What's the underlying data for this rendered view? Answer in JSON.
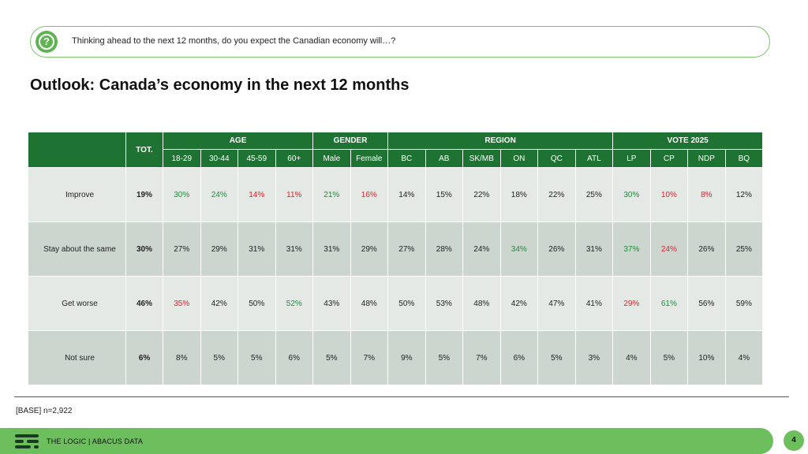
{
  "question": "Thinking ahead to the next 12 months, do you expect the Canadian economy will…?",
  "title": "Outlook: Canada’s economy in the next 12 months",
  "table": {
    "total_label": "TOT.",
    "groups": [
      {
        "name": "AGE",
        "columns": [
          "18-29",
          "30-44",
          "45-59",
          "60+"
        ]
      },
      {
        "name": "GENDER",
        "columns": [
          "Male",
          "Female"
        ]
      },
      {
        "name": "REGION",
        "columns": [
          "BC",
          "AB",
          "SK/MB",
          "ON",
          "QC",
          "ATL"
        ]
      },
      {
        "name": "VOTE 2025",
        "columns": [
          "LP",
          "CP",
          "NDP",
          "BQ"
        ]
      }
    ],
    "rows": [
      {
        "label": "Improve",
        "total": "19%",
        "values": [
          "30%",
          "24%",
          "14%",
          "11%",
          "21%",
          "16%",
          "14%",
          "15%",
          "22%",
          "18%",
          "22%",
          "25%",
          "30%",
          "10%",
          "8%",
          "12%"
        ],
        "colors": [
          "g",
          "g",
          "r",
          "r",
          "g",
          "r",
          "",
          "",
          "",
          "",
          "",
          "",
          "g",
          "r",
          "r",
          ""
        ]
      },
      {
        "label": "Stay about the same",
        "total": "30%",
        "values": [
          "27%",
          "29%",
          "31%",
          "31%",
          "31%",
          "29%",
          "27%",
          "28%",
          "24%",
          "34%",
          "26%",
          "31%",
          "37%",
          "24%",
          "26%",
          "25%"
        ],
        "colors": [
          "",
          "",
          "",
          "",
          "",
          "",
          "",
          "",
          "",
          "g",
          "",
          "",
          "g",
          "r",
          "",
          ""
        ]
      },
      {
        "label": "Get worse",
        "total": "46%",
        "values": [
          "35%",
          "42%",
          "50%",
          "52%",
          "43%",
          "48%",
          "50%",
          "53%",
          "48%",
          "42%",
          "47%",
          "41%",
          "29%",
          "61%",
          "56%",
          "59%"
        ],
        "colors": [
          "r",
          "",
          "",
          "g",
          "",
          "",
          "",
          "",
          "",
          "",
          "",
          "",
          "r",
          "g",
          "",
          ""
        ]
      },
      {
        "label": "Not sure",
        "total": "6%",
        "values": [
          "8%",
          "5%",
          "5%",
          "6%",
          "5%",
          "7%",
          "9%",
          "5%",
          "7%",
          "6%",
          "5%",
          "3%",
          "4%",
          "5%",
          "10%",
          "4%"
        ],
        "colors": [
          "",
          "",
          "",
          "",
          "",
          "",
          "",
          "",
          "",
          "",
          "",
          "",
          "",
          "",
          "",
          ""
        ]
      }
    ]
  },
  "base_note": "[BASE] n=2,922",
  "footer": {
    "text": "THE LOGIC  |  ABACUS DATA",
    "page_number": "4",
    "logo_icon": "abacus-bars-icon",
    "question_icon": "question-mark-icon"
  },
  "colors": {
    "header_green": "#1e7333",
    "footer_green": "#6cbf5c",
    "positive": "#1f8a3a",
    "negative": "#e0202a",
    "row_light": "#e4e9e6",
    "row_dark": "#ccd6cf"
  }
}
